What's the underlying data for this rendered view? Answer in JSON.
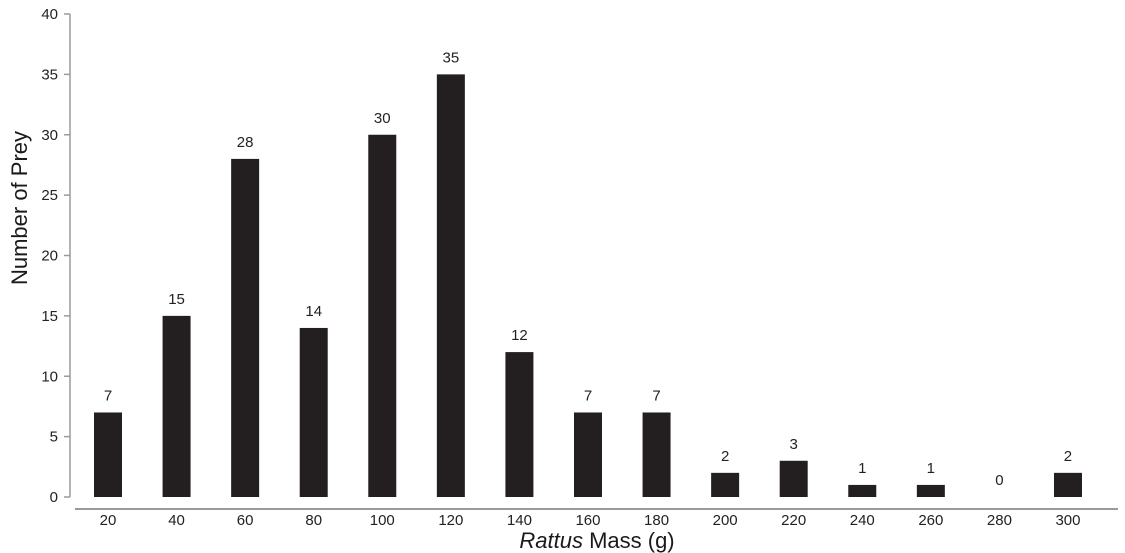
{
  "chart_data": {
    "type": "bar",
    "categories": [
      "20",
      "40",
      "60",
      "80",
      "100",
      "120",
      "140",
      "160",
      "180",
      "200",
      "220",
      "240",
      "260",
      "280",
      "300"
    ],
    "values": [
      7,
      15,
      28,
      14,
      30,
      35,
      12,
      7,
      7,
      2,
      3,
      1,
      1,
      0,
      2
    ],
    "data_labels": [
      "7",
      "15",
      "28",
      "14",
      "30",
      "35",
      "12",
      "7",
      "7",
      "2",
      "3",
      "1",
      "1",
      "0",
      "2"
    ],
    "y_ticks": [
      "0",
      "5",
      "10",
      "15",
      "20",
      "25",
      "30",
      "35",
      "40"
    ],
    "title": "",
    "xlabel_italic": "Rattus",
    "xlabel_rest": " Mass (g)",
    "ylabel": "Number of Prey",
    "ylim": [
      0,
      40
    ],
    "grid": false,
    "legend": "none",
    "bar_color": "#231f20",
    "axis_color": "#9a9a9a"
  }
}
